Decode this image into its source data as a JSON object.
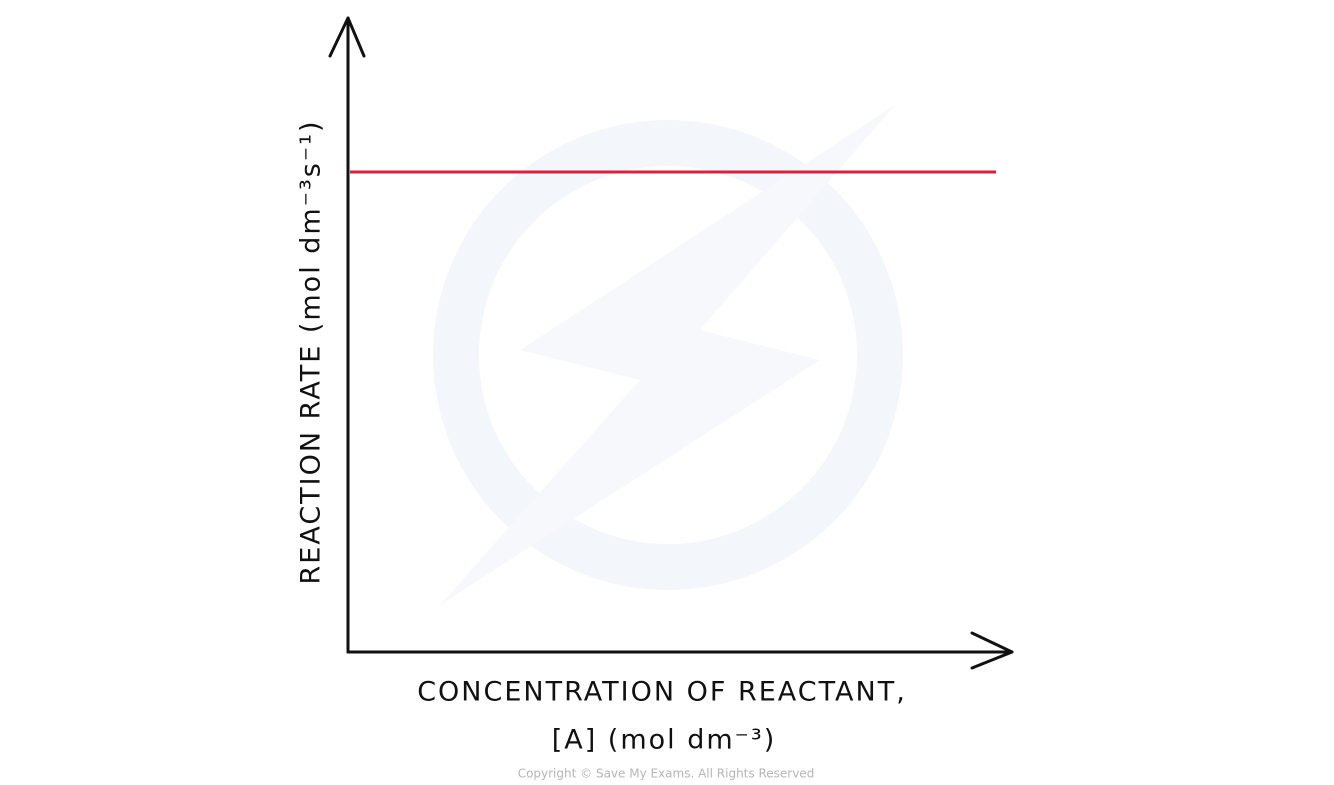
{
  "y_axis": {
    "label": "REACTION RATE  (mol dm⁻³s⁻¹)"
  },
  "x_axis": {
    "label_lines": [
      "CONCENTRATION  OF  REACTANT,",
      "[A] (mol dm⁻³)"
    ]
  },
  "footer": {
    "copyright": "Copyright © Save My Exams. All Rights Reserved"
  }
}
